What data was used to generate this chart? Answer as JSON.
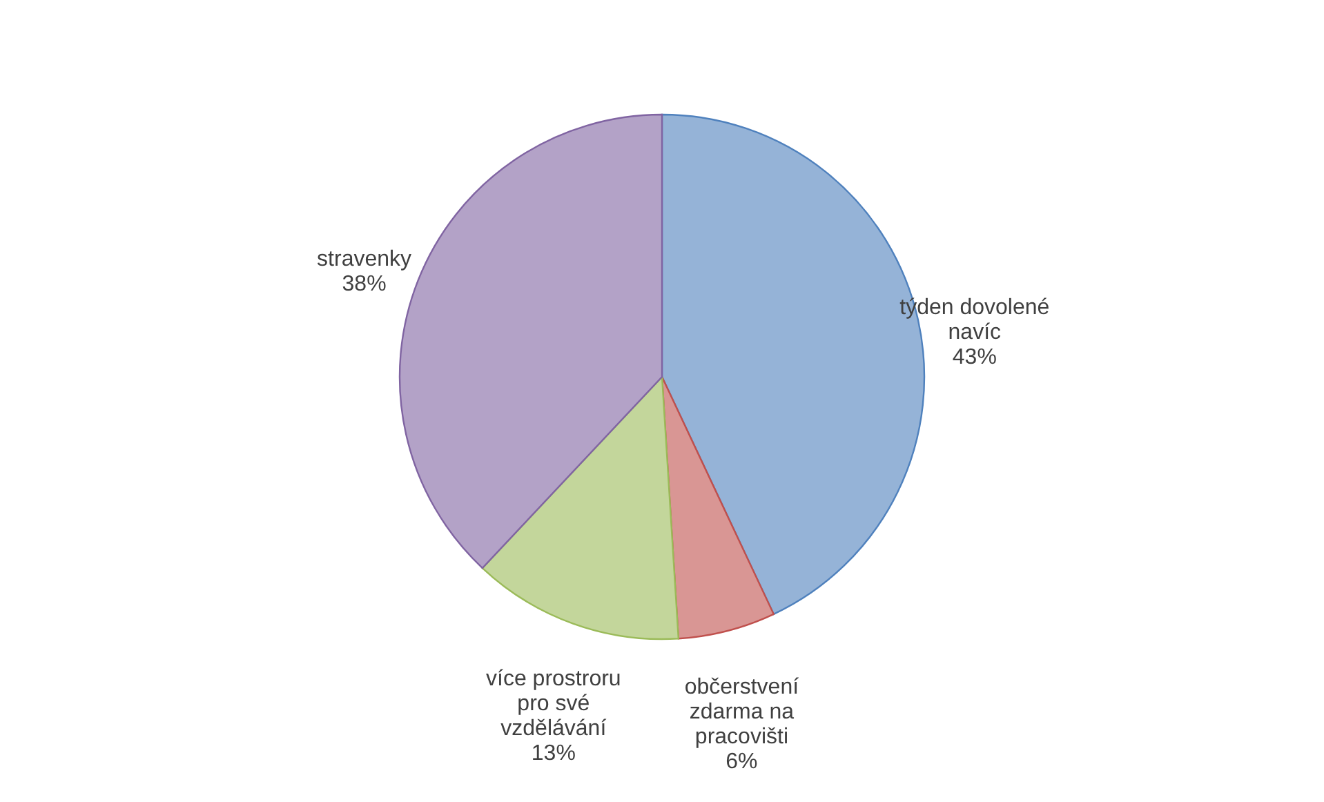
{
  "chart_data": {
    "type": "pie",
    "categories": [
      "týden dovolené navíc",
      "občerstvení zdarma na pracovišti",
      "více prostroru pro své vzdělávání",
      "stravenky"
    ],
    "values": [
      43,
      6,
      13,
      38
    ],
    "colors": [
      "#95b3d7",
      "#d99694",
      "#c3d69b",
      "#b3a2c7"
    ],
    "value_labels": [
      "43%",
      "6%",
      "13%",
      "38%"
    ],
    "legend": false
  }
}
